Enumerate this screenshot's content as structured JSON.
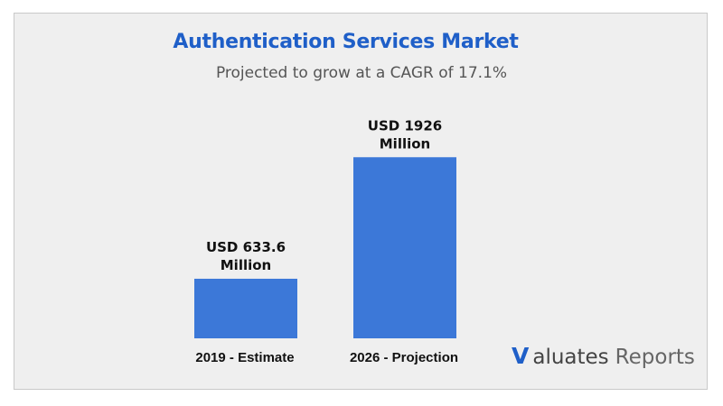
{
  "colors": {
    "bar": "#3c78d8",
    "title": "#1f5fc8",
    "text": "#111111"
  },
  "chart_data": {
    "type": "bar",
    "title": "Authentication Services Market",
    "subtitle": "Projected to grow at a CAGR of 17.1%",
    "categories": [
      "2019 - Estimate",
      "2026 - Projection"
    ],
    "values": [
      633.6,
      1926
    ],
    "data_labels": [
      [
        "USD 633.6",
        "Million"
      ],
      [
        "USD 1926",
        "Million"
      ]
    ],
    "xlabel": "",
    "ylabel": "",
    "ylim": [
      0,
      2130
    ],
    "grid": false,
    "legend": "none"
  },
  "branding": {
    "logo_mark": "V",
    "logo_word1": "aluates",
    "logo_word2": "Reports"
  }
}
